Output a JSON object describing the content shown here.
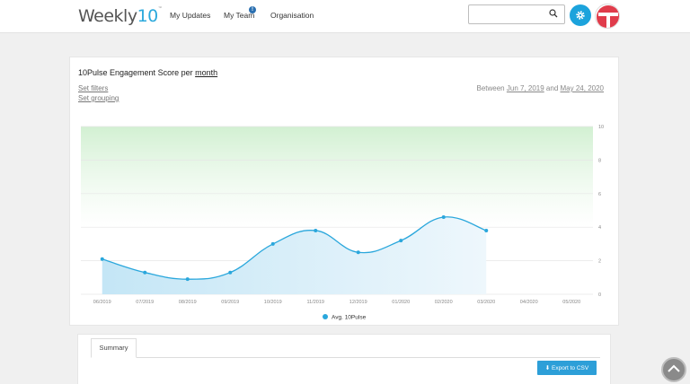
{
  "header": {
    "logo_text": "Weekly",
    "logo_ten": "10",
    "logo_tm": "™",
    "nav": [
      {
        "label": "My Updates"
      },
      {
        "label": "My Team"
      },
      {
        "label": "Organisation"
      }
    ],
    "team_badge": "!",
    "search": {
      "value": "",
      "placeholder": ""
    },
    "colors": {
      "accent": "#1ca3dc",
      "avatar_red": "#e03c4b"
    }
  },
  "report": {
    "title_prefix": "10Pulse Engagement Score per",
    "title_period": "month",
    "set_filters": "Set filters",
    "set_grouping": "Set grouping",
    "between_label": "Between",
    "start_date": "Jun 7, 2019",
    "and_label": "and",
    "end_date": "May 24, 2020"
  },
  "chart_data": {
    "type": "area",
    "categories": [
      "06/2019",
      "07/2019",
      "08/2019",
      "09/2019",
      "10/2019",
      "11/2019",
      "12/2019",
      "01/2020",
      "02/2020",
      "03/2020",
      "04/2020",
      "05/2020"
    ],
    "series": [
      {
        "name": "Avg. 10Pulse",
        "values": [
          2.1,
          1.3,
          0.9,
          1.3,
          3.0,
          3.8,
          2.5,
          3.2,
          4.6,
          3.8,
          null,
          null
        ],
        "color": "#2aa7dc"
      }
    ],
    "yticks": [
      "0",
      "2",
      "4",
      "6",
      "8",
      "10"
    ],
    "ylim": [
      0,
      10
    ],
    "legend_placement": "bottom",
    "grid": true,
    "band_color": "#d8f3d8"
  },
  "summary": {
    "tab_label": "Summary",
    "export_label": "Export to CSV"
  }
}
